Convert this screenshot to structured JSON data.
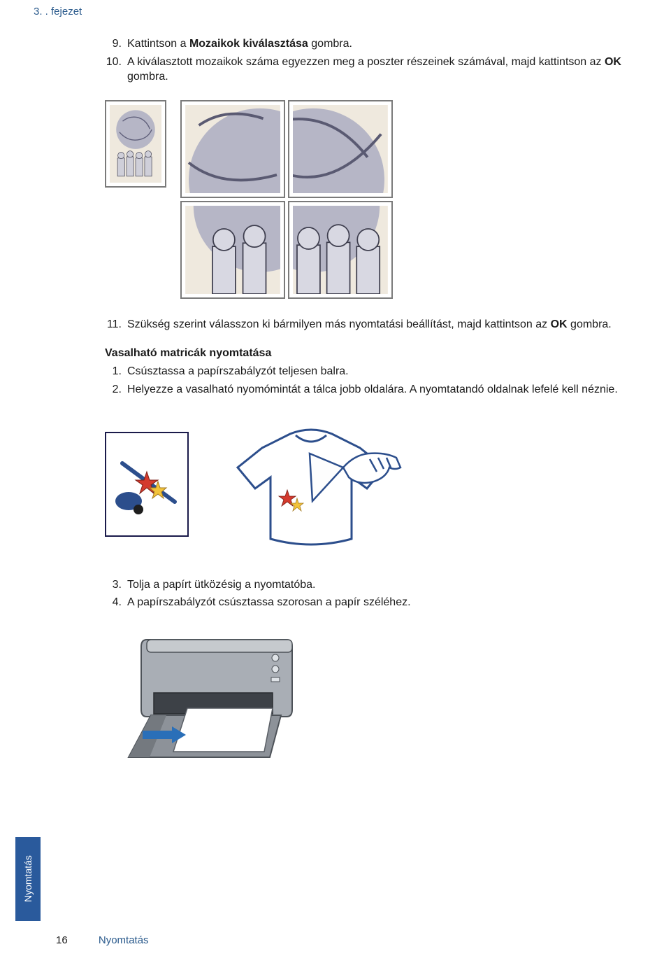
{
  "chapter": "3. . fejezet",
  "steps_a": [
    {
      "num": "9.",
      "pre": "Kattintson a ",
      "bold1": "Mozaikok kiválasztása",
      "post": " gombra."
    },
    {
      "num": "10.",
      "pre": "A kiválasztott mozaikok száma egyezzen meg a poszter részeinek számával, majd kattintson az ",
      "bold1": "OK",
      "post": " gombra."
    }
  ],
  "step11": {
    "num": "11.",
    "pre": "Szükség szerint válasszon ki bármilyen más nyomtatási beállítást, majd kattintson az ",
    "bold1": "OK",
    "post": " gombra."
  },
  "section_title": "Vasalható matricák nyomtatása",
  "steps_b": [
    {
      "num": "1.",
      "text": "Csúsztassa a papírszabályzót teljesen balra."
    },
    {
      "num": "2.",
      "text": "Helyezze a vasalható nyomómintát a tálca jobb oldalára. A nyomtatandó oldalnak lefelé kell néznie."
    }
  ],
  "steps_c": [
    {
      "num": "3.",
      "text": "Tolja a papírt ütközésig a nyomtatóba."
    },
    {
      "num": "4.",
      "text": "A papírszabályzót csúsztassa szorosan a papír széléhez."
    }
  ],
  "side_tab": "Nyomtatás",
  "footer_page": "16",
  "footer_section": "Nyomtatás",
  "colors": {
    "heading": "#2a5a8c",
    "tab_bg": "#2a5a9c",
    "frame": "#7a7a7a",
    "star_red": "#d43a2e",
    "star_yellow": "#f2c33a",
    "stick_blue": "#2c4e8c",
    "printer_body": "#9aa0a6",
    "printer_dark": "#5a5f66",
    "printer_tray": "#6d7278",
    "arrow": "#2a6fb8"
  }
}
